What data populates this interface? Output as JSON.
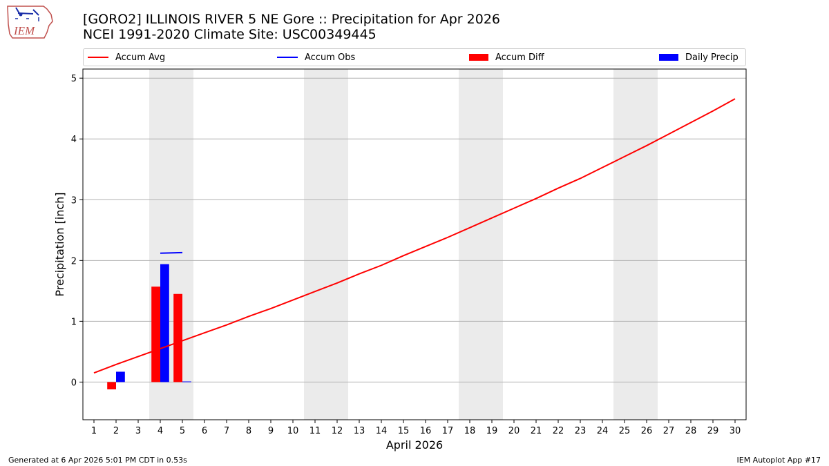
{
  "header": {
    "title_line1": "[GORO2] ILLINOIS RIVER 5 NE Gore :: Precipitation for Apr 2026",
    "title_line2": "NCEI 1991-2020 Climate Site: USC00349445"
  },
  "logo": {
    "text": "IEM",
    "icon": "iem-iowa-map-logo"
  },
  "legend": {
    "placement": "top",
    "items": [
      {
        "label": "Accum Avg",
        "swatch": "line",
        "color": "#ff0000"
      },
      {
        "label": "Accum Obs",
        "swatch": "line",
        "color": "#0000ff"
      },
      {
        "label": "Accum Diff",
        "swatch": "box",
        "color": "#ff0000"
      },
      {
        "label": "Daily Precip",
        "swatch": "box",
        "color": "#0000ff"
      }
    ]
  },
  "footer": {
    "left": "Generated at 6 Apr 2026 5:01 PM CDT in 0.53s",
    "right": "IEM Autoplot App #17"
  },
  "chart_data": {
    "type": "bar",
    "xlabel": "April 2026",
    "ylabel": "Precipitation [inch]",
    "xlim": [
      0.5,
      30.5
    ],
    "ylim": [
      -0.62,
      5.15
    ],
    "x_ticks": [
      1,
      2,
      3,
      4,
      5,
      6,
      7,
      8,
      9,
      10,
      11,
      12,
      13,
      14,
      15,
      16,
      17,
      18,
      19,
      20,
      21,
      22,
      23,
      24,
      25,
      26,
      27,
      28,
      29,
      30
    ],
    "y_ticks": [
      0,
      1,
      2,
      3,
      4,
      5
    ],
    "grid": "horizontal",
    "weekend_shading": [
      [
        3.5,
        5.5
      ],
      [
        10.5,
        12.5
      ],
      [
        17.5,
        19.5
      ],
      [
        24.5,
        26.5
      ]
    ],
    "shading_color": "#ebebeb",
    "series": [
      {
        "name": "Accum Avg",
        "kind": "line",
        "color": "#ff0000",
        "x": [
          1,
          2,
          3,
          4,
          5,
          6,
          7,
          8,
          9,
          10,
          11,
          12,
          13,
          14,
          15,
          16,
          17,
          18,
          19,
          20,
          21,
          22,
          23,
          24,
          25,
          26,
          27,
          28,
          29,
          30
        ],
        "values": [
          0.15,
          0.29,
          0.42,
          0.55,
          0.68,
          0.81,
          0.94,
          1.08,
          1.21,
          1.35,
          1.49,
          1.63,
          1.78,
          1.92,
          2.08,
          2.23,
          2.38,
          2.54,
          2.7,
          2.86,
          3.02,
          3.19,
          3.35,
          3.53,
          3.71,
          3.89,
          4.08,
          4.27,
          4.46,
          4.66
        ]
      },
      {
        "name": "Accum Obs",
        "kind": "line",
        "color": "#0000ff",
        "x": [
          4,
          5
        ],
        "values": [
          2.12,
          2.13
        ]
      },
      {
        "name": "Accum Diff",
        "kind": "bar",
        "color": "#ff0000",
        "offset": -0.2,
        "width": 0.4,
        "x": [
          2,
          4,
          5
        ],
        "values": [
          -0.12,
          1.57,
          1.45
        ]
      },
      {
        "name": "Daily Precip",
        "kind": "bar",
        "color": "#0000ff",
        "offset": 0.2,
        "width": 0.4,
        "x": [
          2,
          4,
          5
        ],
        "values": [
          0.17,
          1.94,
          0.01
        ]
      }
    ]
  }
}
